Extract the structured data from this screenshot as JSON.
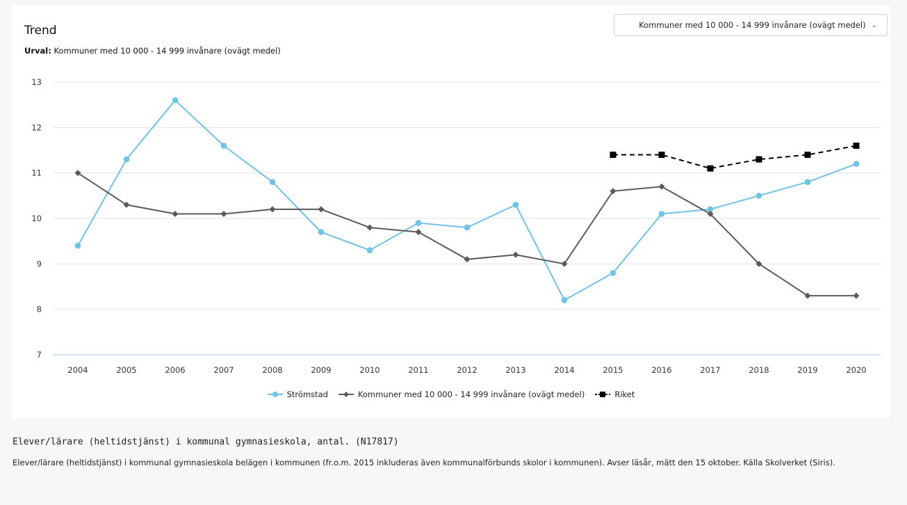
{
  "header": {
    "title": "Trend",
    "subtitle_label": "Urval:",
    "subtitle_value": "Kommuner med 10 000 - 14 999 invånare (ovägt medel)"
  },
  "dropdown": {
    "selected": "Kommuner med 10 000 - 14 999 invånare (ovägt medel)",
    "chevron_icon": "chevron-down-icon"
  },
  "chart_data": {
    "type": "line",
    "x": [
      2004,
      2005,
      2006,
      2007,
      2008,
      2009,
      2010,
      2011,
      2012,
      2013,
      2014,
      2015,
      2016,
      2017,
      2018,
      2019,
      2020
    ],
    "ylim": [
      7,
      13
    ],
    "yticks": [
      7,
      8,
      9,
      10,
      11,
      12,
      13
    ],
    "grid": true,
    "legend_position": "bottom-center",
    "series": [
      {
        "name": "Strömstad",
        "color": "#6ec3e6",
        "marker": "circle",
        "dashed": false,
        "values": [
          9.4,
          11.3,
          12.6,
          11.6,
          10.8,
          9.7,
          9.3,
          9.9,
          9.8,
          10.3,
          8.2,
          8.8,
          10.1,
          10.2,
          10.5,
          10.8,
          11.2
        ]
      },
      {
        "name": "Kommuner med 10 000 - 14 999 invånare (ovägt medel)",
        "color": "#5b5b5b",
        "marker": "diamond",
        "dashed": false,
        "values": [
          11.0,
          10.3,
          10.1,
          10.1,
          10.2,
          10.2,
          9.8,
          9.7,
          9.1,
          9.2,
          9.0,
          10.6,
          10.7,
          10.1,
          9.0,
          8.3,
          8.3
        ]
      },
      {
        "name": "Riket",
        "color": "#000000",
        "marker": "square",
        "dashed": true,
        "values": [
          null,
          null,
          null,
          null,
          null,
          null,
          null,
          null,
          null,
          null,
          null,
          11.4,
          11.4,
          11.1,
          11.3,
          11.4,
          11.6
        ]
      }
    ]
  },
  "footer": {
    "title": "Elever/lärare (heltidstjänst) i kommunal gymnasieskola, antal. (N17817)",
    "body": "Elever/lärare (heltidstjänst) i kommunal gymnasieskola belägen i kommunen (fr.o.m. 2015 inkluderas även kommunalförbunds skolor i kommunen). Avser läsår, mätt den 15 oktober. Källa Skolverket (Siris)."
  }
}
